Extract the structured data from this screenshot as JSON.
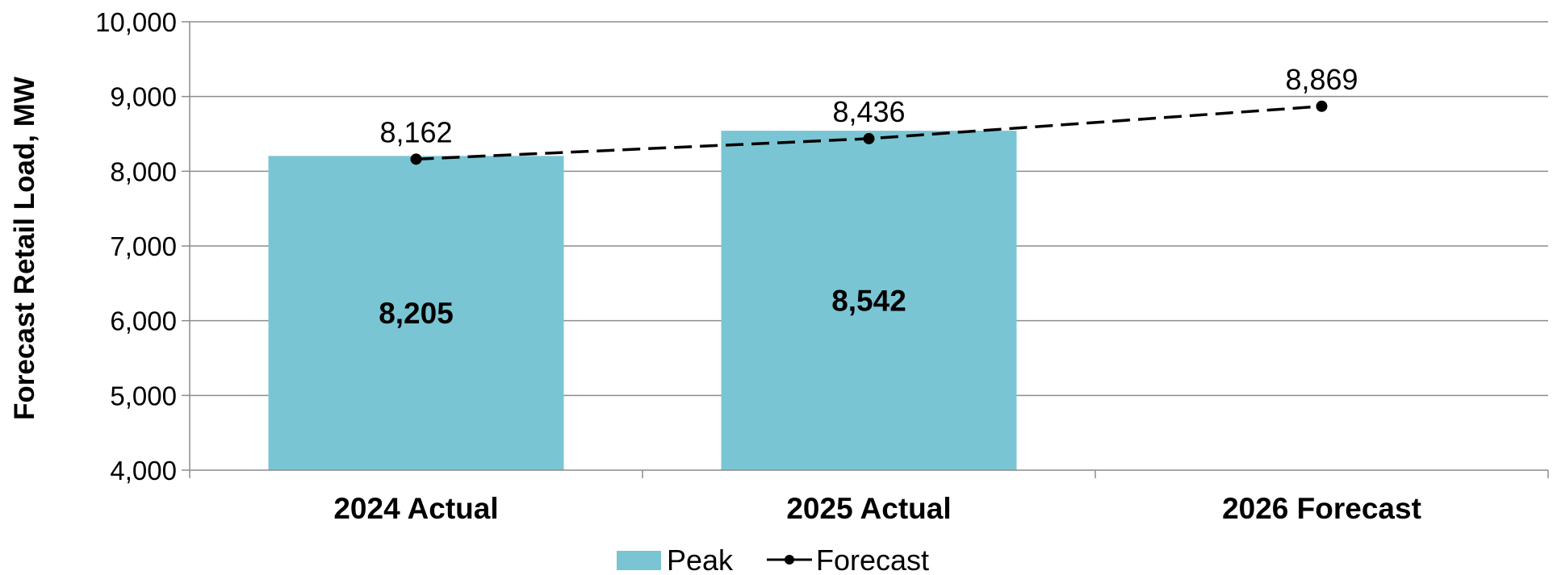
{
  "chart_data": {
    "type": "bar",
    "categories": [
      "2024 Actual",
      "2025 Actual",
      "2026 Forecast"
    ],
    "series": [
      {
        "name": "Peak",
        "kind": "bar",
        "values": [
          8205,
          8542,
          null
        ],
        "labels": [
          "8,205",
          "8,542",
          ""
        ]
      },
      {
        "name": "Forecast",
        "kind": "line",
        "style": "dashed",
        "values": [
          8162,
          8436,
          8869
        ],
        "labels": [
          "8,162",
          "8,436",
          "8,869"
        ]
      }
    ],
    "ylabel": "Forecast Retail Load, MW",
    "xlabel": "",
    "title": "",
    "ylim": [
      4000,
      10000
    ],
    "yticks": [
      4000,
      5000,
      6000,
      7000,
      8000,
      9000,
      10000
    ],
    "ytick_labels": [
      "4,000",
      "5,000",
      "6,000",
      "7,000",
      "8,000",
      "9,000",
      "10,000"
    ],
    "grid": true,
    "legend_position": "bottom-center"
  },
  "colors": {
    "bar": "#7AC5D4",
    "line": "#000000",
    "grid": "#8C8C8C"
  }
}
